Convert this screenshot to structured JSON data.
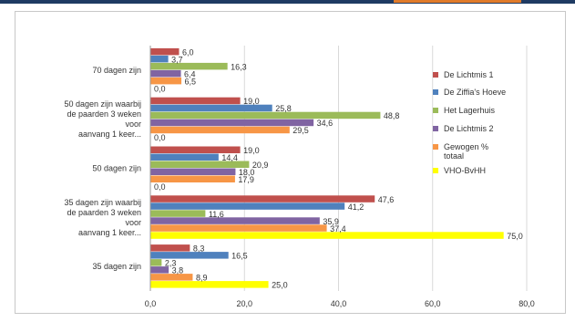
{
  "chart_data": {
    "type": "bar",
    "orientation": "horizontal",
    "title": "",
    "xlabel": "",
    "ylabel": "",
    "xlim": [
      0,
      80
    ],
    "x_ticks": [
      "0,0",
      "20,0",
      "40,0",
      "60,0",
      "80,0"
    ],
    "grid": "vertical",
    "legend_position": "right",
    "categories": [
      "70 dagen zijn",
      "50 dagen zijn waarbij de paarden 3 weken voor aanvang 1 keer...",
      "50 dagen zijn",
      "35 dagen zijn waarbij de paarden 3 weken voor aanvang 1 keer...",
      "35 dagen zijn"
    ],
    "category_label_lines": [
      [
        "70 dagen zijn"
      ],
      [
        "50 dagen zijn waarbij",
        "de paarden 3 weken",
        "voor",
        "aanvang 1 keer..."
      ],
      [
        "50 dagen zijn"
      ],
      [
        "35 dagen zijn waarbij",
        "de paarden 3 weken",
        "voor",
        "aanvang 1 keer..."
      ],
      [
        "35 dagen zijn"
      ]
    ],
    "series": [
      {
        "name": "De Lichtmis 1",
        "color": "#c0504d",
        "values": [
          6.0,
          19.0,
          19.0,
          47.6,
          8.3
        ],
        "labels": [
          "6,0",
          "19,0",
          "19,0",
          "47,6",
          "8,3"
        ]
      },
      {
        "name": "De Ziffia's Hoeve",
        "color": "#4f81bd",
        "values": [
          3.7,
          25.8,
          14.4,
          41.2,
          16.5
        ],
        "labels": [
          "3,7",
          "25,8",
          "14,4",
          "41,2",
          "16,5"
        ]
      },
      {
        "name": "Het Lagerhuis",
        "color": "#9bbb59",
        "values": [
          16.3,
          48.8,
          20.9,
          11.6,
          2.3
        ],
        "labels": [
          "16,3",
          "48,8",
          "20,9",
          "11,6",
          "2,3"
        ]
      },
      {
        "name": "De Lichtmis 2",
        "color": "#8064a2",
        "values": [
          6.4,
          34.6,
          18.0,
          35.9,
          3.8
        ],
        "labels": [
          "6,4",
          "34,6",
          "18,0",
          "35,9",
          "3,8"
        ]
      },
      {
        "name": "Gewogen % totaal",
        "color": "#f79646",
        "values": [
          6.5,
          29.5,
          17.9,
          37.4,
          8.9
        ],
        "labels": [
          "6,5",
          "29,5",
          "17,9",
          "37,4",
          "8,9"
        ]
      },
      {
        "name": "VHO-BvHH",
        "color": "#ffff00",
        "values": [
          0.0,
          0.0,
          0.0,
          75.0,
          25.0
        ],
        "labels": [
          "0,0",
          "0,0",
          "0,0",
          "75,0",
          "25,0"
        ]
      }
    ],
    "legend_lines": [
      [
        "De Lichtmis 1"
      ],
      [
        "De Ziffia's Hoeve"
      ],
      [
        "Het Lagerhuis"
      ],
      [
        "De Lichtmis 2"
      ],
      [
        "Gewogen %",
        "totaal"
      ],
      [
        "VHO-BvHH"
      ]
    ]
  }
}
